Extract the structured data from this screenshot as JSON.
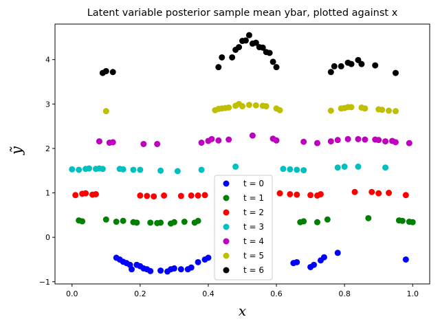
{
  "chart_data": {
    "type": "scatter",
    "title": "Latent variable posterior sample mean ybar, plotted against x",
    "xlabel": "x",
    "ylabel": "ỹ",
    "xlim": [
      -0.05,
      1.05
    ],
    "ylim": [
      -1.05,
      4.8
    ],
    "xticks": [
      "0.0",
      "0.2",
      "0.4",
      "0.6",
      "0.8",
      "1.0"
    ],
    "yticks": [
      "−1",
      "0",
      "1",
      "2",
      "3",
      "4"
    ],
    "grid": false,
    "legend_position": "lower-center",
    "series": [
      {
        "name": "t = 0",
        "color": "#0000ff",
        "points": [
          [
            0.13,
            -0.46
          ],
          [
            0.14,
            -0.5
          ],
          [
            0.15,
            -0.55
          ],
          [
            0.16,
            -0.58
          ],
          [
            0.17,
            -0.62
          ],
          [
            0.175,
            -0.72
          ],
          [
            0.19,
            -0.62
          ],
          [
            0.2,
            -0.65
          ],
          [
            0.21,
            -0.7
          ],
          [
            0.22,
            -0.72
          ],
          [
            0.23,
            -0.76
          ],
          [
            0.26,
            -0.75
          ],
          [
            0.28,
            -0.77
          ],
          [
            0.29,
            -0.72
          ],
          [
            0.3,
            -0.7
          ],
          [
            0.32,
            -0.72
          ],
          [
            0.34,
            -0.72
          ],
          [
            0.35,
            -0.68
          ],
          [
            0.37,
            -0.56
          ],
          [
            0.39,
            -0.5
          ],
          [
            0.4,
            -0.46
          ],
          [
            0.65,
            -0.58
          ],
          [
            0.66,
            -0.56
          ],
          [
            0.7,
            -0.67
          ],
          [
            0.71,
            -0.62
          ],
          [
            0.73,
            -0.52
          ],
          [
            0.74,
            -0.45
          ],
          [
            0.78,
            -0.35
          ],
          [
            0.98,
            -0.5
          ]
        ]
      },
      {
        "name": "t = 1",
        "color": "#008000",
        "points": [
          [
            0.02,
            0.38
          ],
          [
            0.03,
            0.36
          ],
          [
            0.1,
            0.4
          ],
          [
            0.13,
            0.35
          ],
          [
            0.15,
            0.37
          ],
          [
            0.18,
            0.34
          ],
          [
            0.19,
            0.33
          ],
          [
            0.23,
            0.33
          ],
          [
            0.25,
            0.32
          ],
          [
            0.26,
            0.33
          ],
          [
            0.29,
            0.31
          ],
          [
            0.3,
            0.34
          ],
          [
            0.33,
            0.35
          ],
          [
            0.36,
            0.33
          ],
          [
            0.37,
            0.37
          ],
          [
            0.67,
            0.34
          ],
          [
            0.68,
            0.36
          ],
          [
            0.72,
            0.34
          ],
          [
            0.75,
            0.4
          ],
          [
            0.87,
            0.43
          ],
          [
            0.96,
            0.38
          ],
          [
            0.97,
            0.37
          ],
          [
            0.99,
            0.35
          ],
          [
            1.0,
            0.34
          ]
        ]
      },
      {
        "name": "t = 2",
        "color": "#ff0000",
        "points": [
          [
            0.01,
            0.95
          ],
          [
            0.03,
            0.98
          ],
          [
            0.04,
            0.99
          ],
          [
            0.06,
            0.96
          ],
          [
            0.07,
            0.97
          ],
          [
            0.2,
            0.94
          ],
          [
            0.22,
            0.93
          ],
          [
            0.24,
            0.92
          ],
          [
            0.27,
            0.94
          ],
          [
            0.32,
            0.93
          ],
          [
            0.35,
            0.94
          ],
          [
            0.37,
            0.94
          ],
          [
            0.39,
            0.95
          ],
          [
            0.61,
            0.99
          ],
          [
            0.64,
            0.97
          ],
          [
            0.66,
            0.96
          ],
          [
            0.7,
            0.95
          ],
          [
            0.72,
            0.94
          ],
          [
            0.73,
            0.97
          ],
          [
            0.83,
            1.02
          ],
          [
            0.88,
            1.02
          ],
          [
            0.9,
            0.99
          ],
          [
            0.93,
            1.0
          ],
          [
            0.98,
            0.95
          ]
        ]
      },
      {
        "name": "t = 3",
        "color": "#00bfbf",
        "points": [
          [
            0.0,
            1.53
          ],
          [
            0.02,
            1.52
          ],
          [
            0.04,
            1.54
          ],
          [
            0.05,
            1.55
          ],
          [
            0.07,
            1.54
          ],
          [
            0.08,
            1.55
          ],
          [
            0.09,
            1.54
          ],
          [
            0.14,
            1.54
          ],
          [
            0.15,
            1.53
          ],
          [
            0.18,
            1.52
          ],
          [
            0.2,
            1.52
          ],
          [
            0.26,
            1.5
          ],
          [
            0.31,
            1.49
          ],
          [
            0.38,
            1.52
          ],
          [
            0.48,
            1.59
          ],
          [
            0.62,
            1.54
          ],
          [
            0.64,
            1.53
          ],
          [
            0.66,
            1.52
          ],
          [
            0.68,
            1.51
          ],
          [
            0.78,
            1.57
          ],
          [
            0.8,
            1.59
          ],
          [
            0.84,
            1.59
          ],
          [
            0.92,
            1.57
          ]
        ]
      },
      {
        "name": "t = 4",
        "color": "#bf00bf",
        "points": [
          [
            0.08,
            2.16
          ],
          [
            0.11,
            2.13
          ],
          [
            0.12,
            2.14
          ],
          [
            0.21,
            2.1
          ],
          [
            0.25,
            2.1
          ],
          [
            0.38,
            2.13
          ],
          [
            0.4,
            2.17
          ],
          [
            0.41,
            2.21
          ],
          [
            0.43,
            2.18
          ],
          [
            0.46,
            2.2
          ],
          [
            0.53,
            2.29
          ],
          [
            0.59,
            2.22
          ],
          [
            0.6,
            2.18
          ],
          [
            0.68,
            2.15
          ],
          [
            0.72,
            2.12
          ],
          [
            0.76,
            2.16
          ],
          [
            0.78,
            2.19
          ],
          [
            0.81,
            2.21
          ],
          [
            0.84,
            2.21
          ],
          [
            0.86,
            2.2
          ],
          [
            0.89,
            2.2
          ],
          [
            0.9,
            2.19
          ],
          [
            0.92,
            2.16
          ],
          [
            0.94,
            2.17
          ],
          [
            0.95,
            2.14
          ],
          [
            0.99,
            2.12
          ]
        ]
      },
      {
        "name": "t = 5",
        "color": "#bfbf00",
        "points": [
          [
            0.1,
            2.84
          ],
          [
            0.42,
            2.86
          ],
          [
            0.43,
            2.89
          ],
          [
            0.44,
            2.9
          ],
          [
            0.45,
            2.91
          ],
          [
            0.46,
            2.92
          ],
          [
            0.48,
            2.96
          ],
          [
            0.49,
            3.0
          ],
          [
            0.5,
            2.95
          ],
          [
            0.52,
            2.98
          ],
          [
            0.54,
            2.97
          ],
          [
            0.56,
            2.96
          ],
          [
            0.57,
            2.95
          ],
          [
            0.6,
            2.9
          ],
          [
            0.61,
            2.86
          ],
          [
            0.76,
            2.85
          ],
          [
            0.79,
            2.9
          ],
          [
            0.8,
            2.91
          ],
          [
            0.81,
            2.93
          ],
          [
            0.82,
            2.93
          ],
          [
            0.85,
            2.92
          ],
          [
            0.86,
            2.9
          ],
          [
            0.9,
            2.88
          ],
          [
            0.91,
            2.87
          ],
          [
            0.93,
            2.85
          ],
          [
            0.95,
            2.84
          ]
        ]
      },
      {
        "name": "t = 6",
        "color": "#000000",
        "points": [
          [
            0.09,
            3.7
          ],
          [
            0.1,
            3.74
          ],
          [
            0.12,
            3.72
          ],
          [
            0.43,
            3.83
          ],
          [
            0.44,
            4.05
          ],
          [
            0.47,
            4.05
          ],
          [
            0.48,
            4.22
          ],
          [
            0.49,
            4.28
          ],
          [
            0.5,
            4.42
          ],
          [
            0.51,
            4.43
          ],
          [
            0.52,
            4.55
          ],
          [
            0.53,
            4.36
          ],
          [
            0.54,
            4.38
          ],
          [
            0.55,
            4.28
          ],
          [
            0.56,
            4.27
          ],
          [
            0.57,
            4.17
          ],
          [
            0.58,
            4.15
          ],
          [
            0.59,
            3.95
          ],
          [
            0.6,
            3.83
          ],
          [
            0.76,
            3.72
          ],
          [
            0.77,
            3.85
          ],
          [
            0.79,
            3.85
          ],
          [
            0.81,
            3.93
          ],
          [
            0.82,
            3.9
          ],
          [
            0.84,
            3.99
          ],
          [
            0.85,
            3.9
          ],
          [
            0.89,
            3.87
          ],
          [
            0.95,
            3.7
          ]
        ]
      }
    ]
  }
}
